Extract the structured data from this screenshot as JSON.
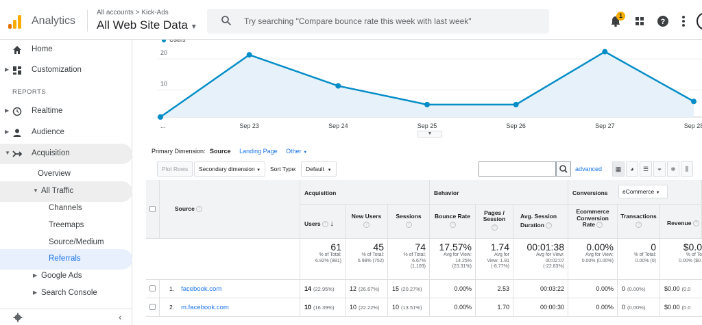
{
  "header": {
    "app_title": "Analytics",
    "breadcrumb": "All accounts > Kick-Ads",
    "property": "All Web Site Data",
    "search_placeholder": "Try searching \"Compare bounce rate this week with last week\"",
    "notification_count": "1"
  },
  "sidebar": {
    "home": "Home",
    "customization": "Customization",
    "reports_label": "REPORTS",
    "realtime": "Realtime",
    "audience": "Audience",
    "acquisition": "Acquisition",
    "overview": "Overview",
    "all_traffic": "All Traffic",
    "channels": "Channels",
    "treemaps": "Treemaps",
    "source_medium": "Source/Medium",
    "referrals": "Referrals",
    "google_ads": "Google Ads",
    "search_console": "Search Console"
  },
  "chart_data": {
    "type": "area",
    "legend": "Users",
    "x": [
      "...",
      "Sep 23",
      "Sep 24",
      "Sep 25",
      "Sep 26",
      "Sep 27",
      "Sep 28"
    ],
    "values": [
      0,
      20,
      10,
      4,
      4,
      21,
      5
    ],
    "y_ticks": [
      "10",
      "20"
    ],
    "ylim": [
      0,
      22
    ],
    "color": "#058dc7"
  },
  "dimension": {
    "label": "Primary Dimension:",
    "active": "Source",
    "option1": "Landing Page",
    "option2": "Other"
  },
  "toolbar": {
    "plot_rows": "Plot Rows",
    "secondary_dimension": "Secondary dimension",
    "sort_type_label": "Sort Type:",
    "sort_type_value": "Default",
    "advanced": "advanced"
  },
  "table": {
    "groups": {
      "acquisition": "Acquisition",
      "behavior": "Behavior",
      "conversions": "Conversions",
      "conversions_select": "eCommerce"
    },
    "columns": {
      "source": "Source",
      "users": "Users",
      "new_users": "New Users",
      "sessions": "Sessions",
      "bounce_rate": "Bounce Rate",
      "pages_session": "Pages / Session",
      "avg_duration": "Avg. Session Duration",
      "ecom_rate": "Ecommerce Conversion Rate",
      "transactions": "Transactions",
      "revenue": "Revenue"
    },
    "totals": {
      "users": "61",
      "users_sub1": "% of Total:",
      "users_sub2": "6.92% (881)",
      "new_users": "45",
      "new_users_sub1": "% of Total:",
      "new_users_sub2": "5.98% (752)",
      "sessions": "74",
      "sessions_sub1": "% of Total:",
      "sessions_sub2": "6.67%",
      "sessions_sub3": "(1,109)",
      "bounce": "17.57%",
      "bounce_sub1": "Avg for View:",
      "bounce_sub2": "14.25%",
      "bounce_sub3": "(23.31%)",
      "pages": "1.74",
      "pages_sub1": "Avg for",
      "pages_sub2": "View: 1.91",
      "pages_sub3": "(-8.77%)",
      "duration": "00:01:38",
      "duration_sub1": "Avg for View:",
      "duration_sub2": "00:02:07",
      "duration_sub3": "(-22.83%)",
      "ecom": "0.00%",
      "ecom_sub1": "Avg for View:",
      "ecom_sub2": "0.00% (0.00%)",
      "trans": "0",
      "trans_sub1": "% of Total:",
      "trans_sub2": "0.00% (0)",
      "revenue": "$0.0",
      "revenue_sub1": "% of To",
      "revenue_sub2": "0.00% ($0."
    },
    "rows": [
      {
        "num": "1.",
        "source": "facebook.com",
        "users": "14",
        "users_pct": "(22.95%)",
        "new_users": "12",
        "new_users_pct": "(26.67%)",
        "sessions": "15",
        "sessions_pct": "(20.27%)",
        "bounce": "0.00%",
        "pages": "2.53",
        "duration": "00:03:22",
        "ecom": "0.00%",
        "trans": "0",
        "trans_pct": "(0.00%)",
        "revenue": "$0.00",
        "revenue_pct": "(0.0"
      },
      {
        "num": "2.",
        "source": "m.facebook.com",
        "users": "10",
        "users_pct": "(16.39%)",
        "new_users": "10",
        "new_users_pct": "(22.22%)",
        "sessions": "10",
        "sessions_pct": "(13.51%)",
        "bounce": "0.00%",
        "pages": "1.70",
        "duration": "00:00:30",
        "ecom": "0.00%",
        "trans": "0",
        "trans_pct": "(0.00%)",
        "revenue": "$0.00",
        "revenue_pct": "(0.0"
      }
    ]
  }
}
